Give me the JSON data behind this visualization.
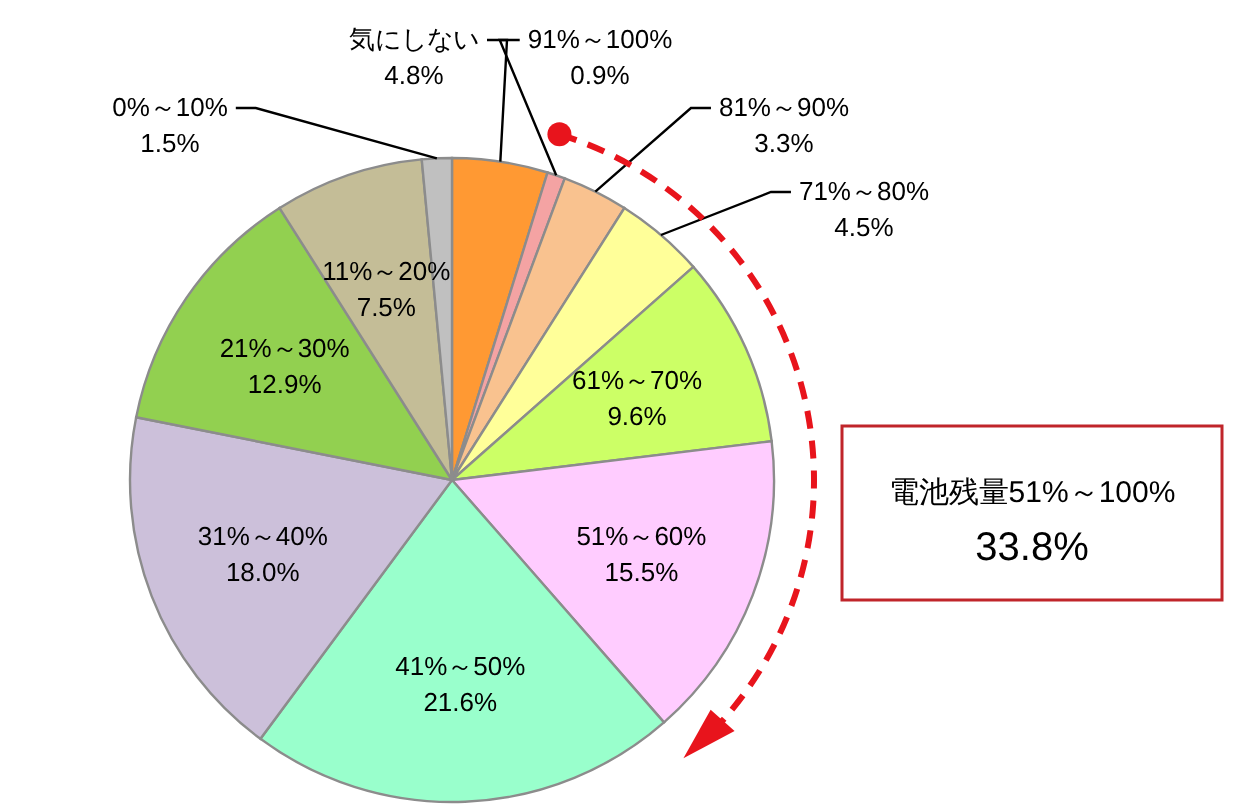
{
  "chart_data": {
    "type": "pie",
    "categories": [
      "気にしない",
      "91%～100%",
      "81%～90%",
      "71%～80%",
      "61%～70%",
      "51%～60%",
      "41%～50%",
      "31%～40%",
      "21%～30%",
      "11%～20%",
      "0%～10%"
    ],
    "values": [
      4.8,
      0.9,
      3.3,
      4.5,
      9.6,
      15.5,
      21.6,
      18.0,
      12.9,
      7.5,
      1.5
    ],
    "value_labels": [
      "4.8%",
      "0.9%",
      "3.3%",
      "4.5%",
      "9.6%",
      "15.5%",
      "21.6%",
      "18.0%",
      "12.9%",
      "7.5%",
      "1.5%"
    ],
    "colors": [
      "#ff9933",
      "#f4a3a3",
      "#f9c28f",
      "#ffff99",
      "#ccff66",
      "#ffccff",
      "#99ffcc",
      "#ccc0da",
      "#92d050",
      "#c4bd97",
      "#c0c0c0"
    ],
    "annotations": [
      "電池残量51%～100%",
      "33.8%"
    ]
  }
}
